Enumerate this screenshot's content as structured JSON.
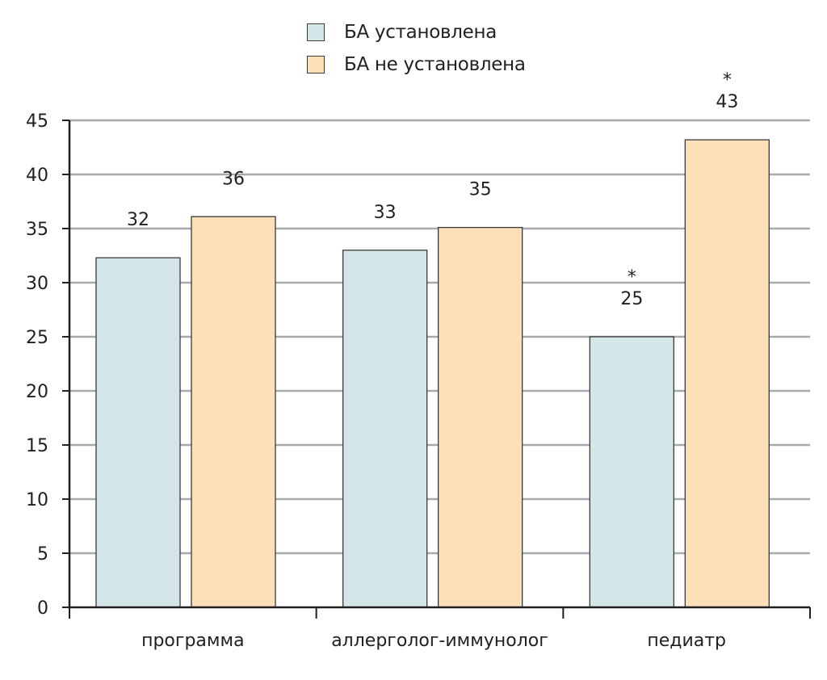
{
  "chart_data": {
    "type": "bar",
    "categories": [
      "программа",
      "аллерголог-иммунолог",
      "педиатр"
    ],
    "series": [
      {
        "name": "БА установлена",
        "color": "#d5e6e8",
        "values": [
          32.3,
          33,
          25
        ],
        "labels": [
          "32",
          "33",
          "25"
        ],
        "marks": [
          "",
          "",
          "*"
        ]
      },
      {
        "name": "БА не установлена",
        "color": "#fde0b8",
        "values": [
          36.1,
          35.1,
          43.2
        ],
        "labels": [
          "36",
          "35",
          "43"
        ],
        "marks": [
          "",
          "",
          "*"
        ]
      }
    ],
    "ylim": [
      0,
      45
    ],
    "yticks": [
      0,
      5,
      10,
      15,
      20,
      25,
      30,
      35,
      40,
      45
    ],
    "grid": true,
    "legend": "top-center",
    "title": "",
    "xlabel": "",
    "ylabel": ""
  }
}
